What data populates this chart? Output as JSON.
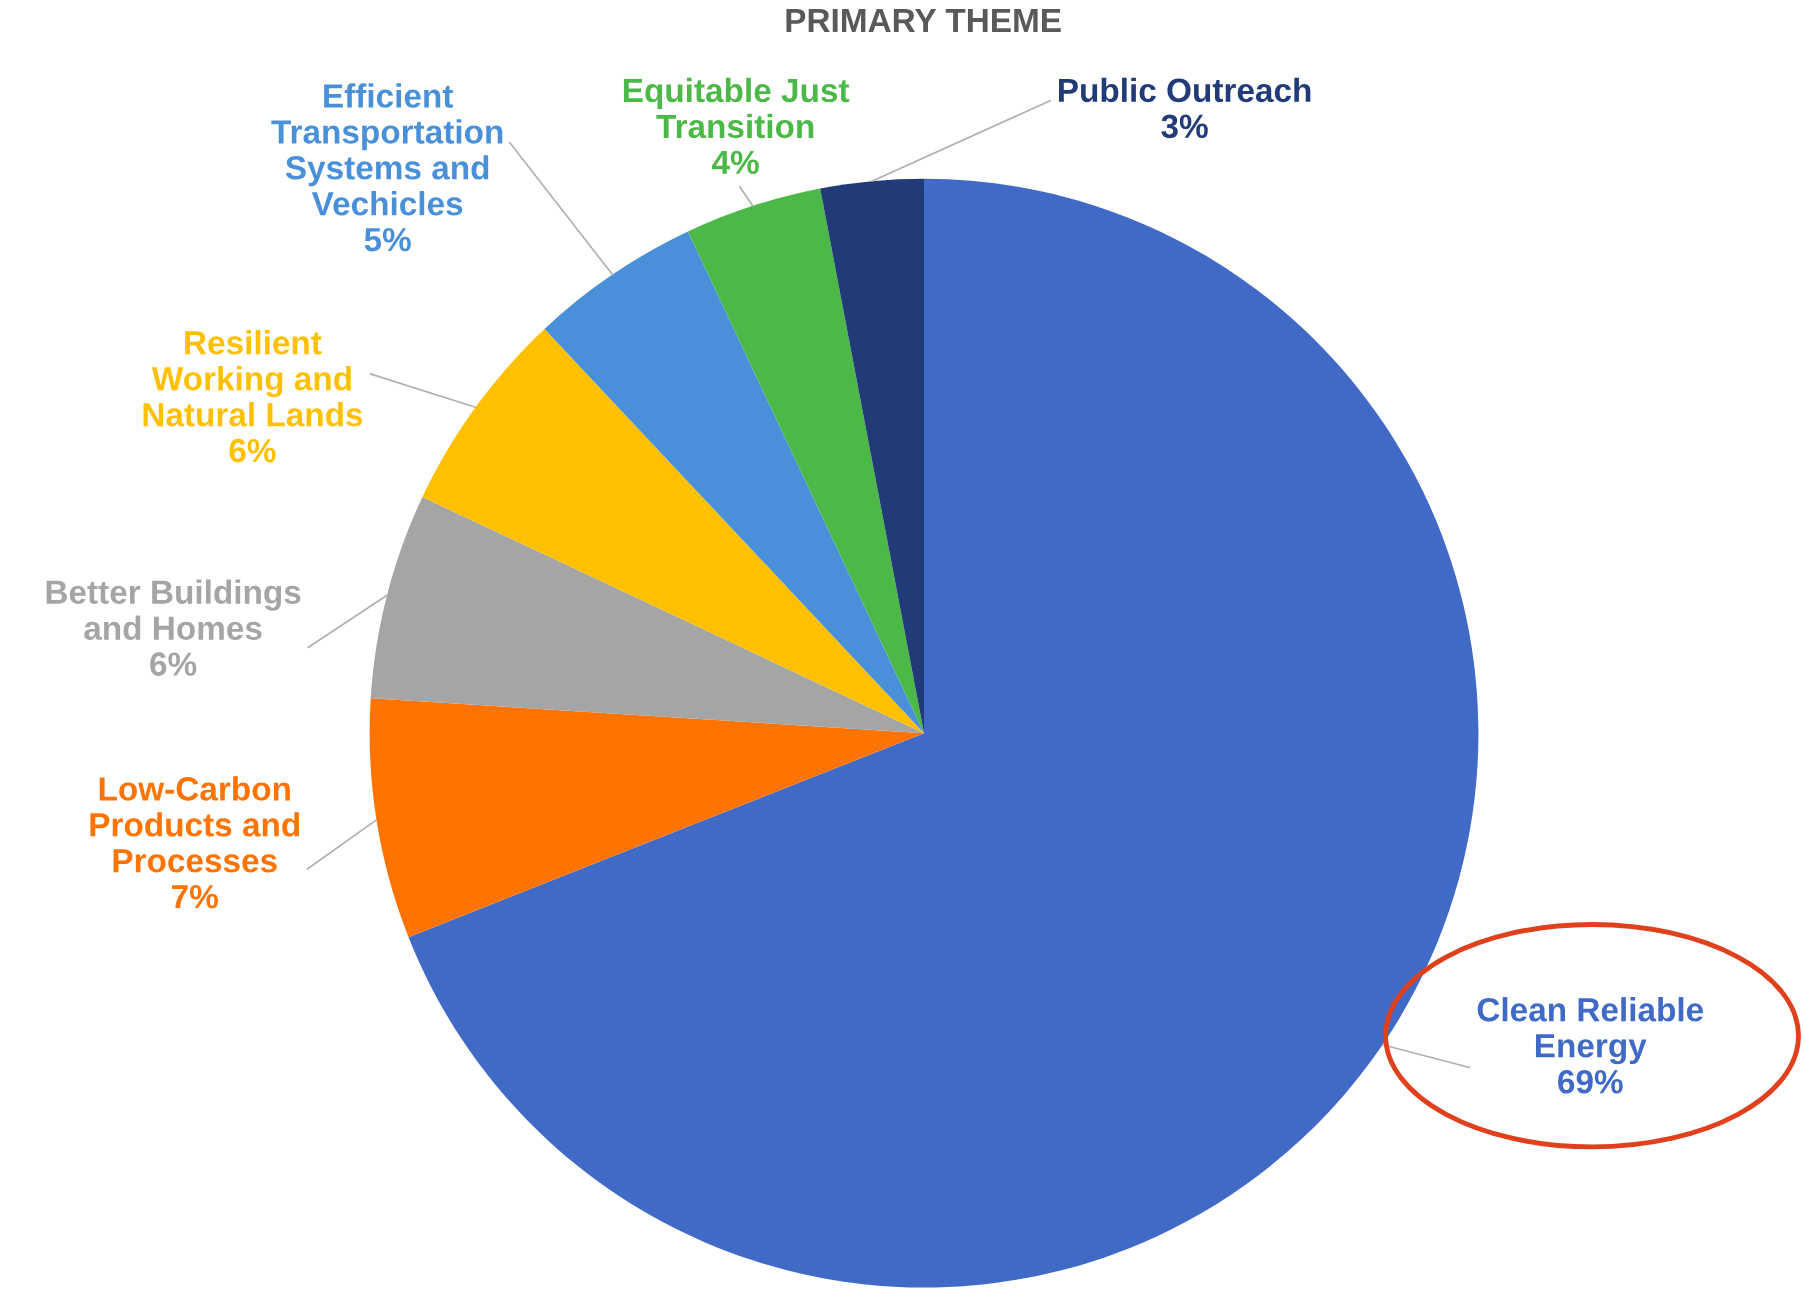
{
  "chart_data": {
    "type": "pie",
    "title": "PRIMARY THEME",
    "categories": [
      "Clean Reliable Energy",
      "Low-Carbon Products and Processes",
      "Better Buildings and Homes",
      "Resilient Working and Natural Lands",
      "Efficient Transportation Systems and Vechicles",
      "Equitable Just Transition",
      "Public Outreach"
    ],
    "values": [
      69,
      7,
      6,
      6,
      5,
      4,
      3
    ],
    "value_labels": [
      "69%",
      "7%",
      "6%",
      "6%",
      "5%",
      "4%",
      "3%"
    ],
    "colors": [
      "#4169c6",
      "#ff7300",
      "#a5a5a5",
      "#ffc000",
      "#4a90d9",
      "#4cb848",
      "#213b78"
    ]
  }
}
